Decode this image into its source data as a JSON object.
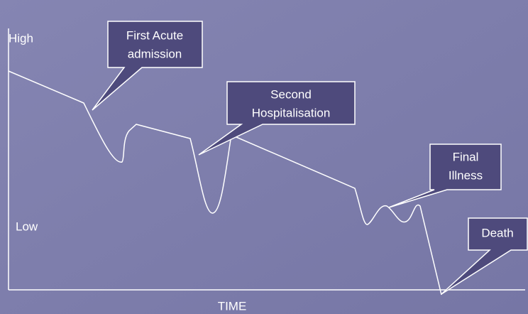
{
  "axis": {
    "y_high": "High",
    "y_low": "Low",
    "x_label": "TIME"
  },
  "callouts": [
    {
      "lines": [
        "First Acute",
        "admission"
      ]
    },
    {
      "lines": [
        "Second",
        "Hospitalisation"
      ]
    },
    {
      "lines": [
        "Final",
        "Illness"
      ]
    },
    {
      "lines": [
        "Death"
      ]
    }
  ]
}
